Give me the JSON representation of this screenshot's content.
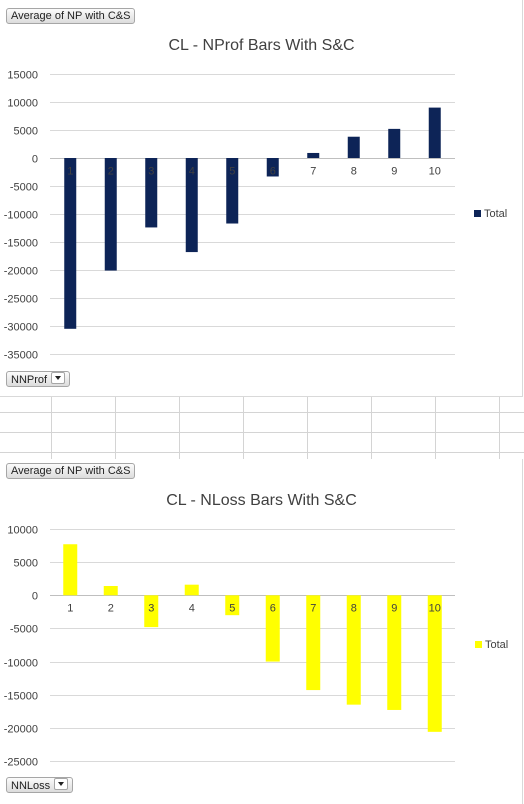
{
  "chart_data": [
    {
      "type": "bar",
      "title": "CL - NProf Bars With S&C",
      "value_field_button": "Average of NP with C&S",
      "axis_field_button": "NNProf",
      "categories": [
        "1",
        "2",
        "3",
        "4",
        "5",
        "6",
        "7",
        "8",
        "9",
        "10"
      ],
      "series": [
        {
          "name": "Total",
          "color": "#0d2457",
          "values": [
            -30500,
            -20100,
            -12400,
            -16800,
            -11700,
            -3300,
            900,
            3800,
            5200,
            9000
          ]
        }
      ],
      "yticks": [
        15000,
        10000,
        5000,
        0,
        -5000,
        -10000,
        -15000,
        -20000,
        -25000,
        -30000,
        -35000
      ],
      "ylim": [
        -35000,
        15000
      ],
      "grid": true,
      "legend": "right"
    },
    {
      "type": "bar",
      "title": "CL - NLoss Bars With S&C",
      "value_field_button": "Average of NP with C&S",
      "axis_field_button": "NNLoss",
      "categories": [
        "1",
        "2",
        "3",
        "4",
        "5",
        "6",
        "7",
        "8",
        "9",
        "10"
      ],
      "series": [
        {
          "name": "Total",
          "color": "#ffff00",
          "values": [
            7700,
            1400,
            -4800,
            1600,
            -3000,
            -10000,
            -14300,
            -16500,
            -17300,
            -20600
          ]
        }
      ],
      "yticks": [
        10000,
        5000,
        0,
        -5000,
        -10000,
        -15000,
        -20000,
        -25000
      ],
      "ylim": [
        -25000,
        10000
      ],
      "grid": true,
      "legend": "right"
    }
  ]
}
